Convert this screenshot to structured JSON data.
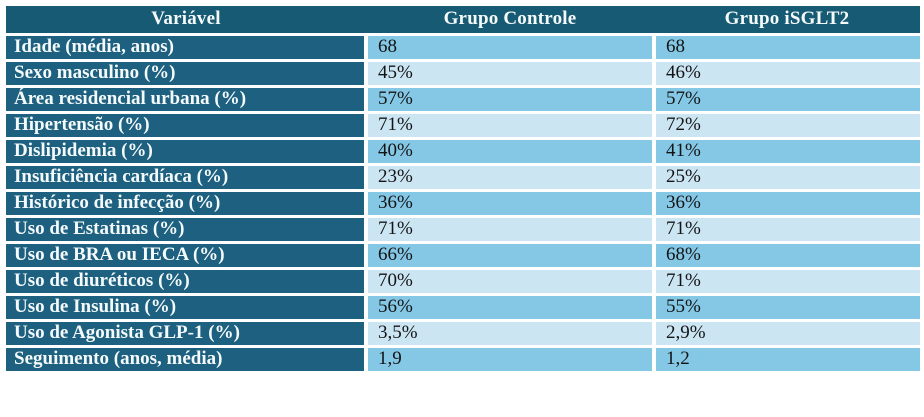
{
  "table": {
    "columns": [
      "Variável",
      "Grupo Controle",
      "Grupo iSGLT2"
    ],
    "rows": [
      {
        "variavel": "Idade (média, anos)",
        "grupo_controle": "68",
        "grupo_isglt2": "68"
      },
      {
        "variavel": "Sexo masculino (%)",
        "grupo_controle": "45%",
        "grupo_isglt2": "46%"
      },
      {
        "variavel": "Área residencial urbana (%)",
        "grupo_controle": "57%",
        "grupo_isglt2": "57%"
      },
      {
        "variavel": "Hipertensão (%)",
        "grupo_controle": "71%",
        "grupo_isglt2": "72%"
      },
      {
        "variavel": "Dislipidemia (%)",
        "grupo_controle": "40%",
        "grupo_isglt2": "41%"
      },
      {
        "variavel": "Insuficiência cardíaca (%)",
        "grupo_controle": "23%",
        "grupo_isglt2": "25%"
      },
      {
        "variavel": "Histórico de infecção (%)",
        "grupo_controle": "36%",
        "grupo_isglt2": "36%"
      },
      {
        "variavel": "Uso de Estatinas (%)",
        "grupo_controle": "71%",
        "grupo_isglt2": "71%"
      },
      {
        "variavel": "Uso de BRA ou IECA (%)",
        "grupo_controle": "66%",
        "grupo_isglt2": "68%"
      },
      {
        "variavel": "Uso de diuréticos (%)",
        "grupo_controle": "70%",
        "grupo_isglt2": "71%"
      },
      {
        "variavel": "Uso de Insulina (%)",
        "grupo_controle": "56%",
        "grupo_isglt2": "55%"
      },
      {
        "variavel": "Uso de Agonista GLP-1 (%)",
        "grupo_controle": "3,5%",
        "grupo_isglt2": "2,9%"
      },
      {
        "variavel": "Seguimento (anos, média)",
        "grupo_controle": "1,9",
        "grupo_isglt2": "1,2"
      }
    ]
  },
  "colors": {
    "header_bg": "#175a73",
    "label_bg": "#1d6080",
    "row_medium": "#85c8e6",
    "row_light": "#cbe5f3",
    "grid": "#ffffff",
    "text_light": "#f5fafb",
    "text_dark": "#141414",
    "table_bottom": "#17506b"
  }
}
